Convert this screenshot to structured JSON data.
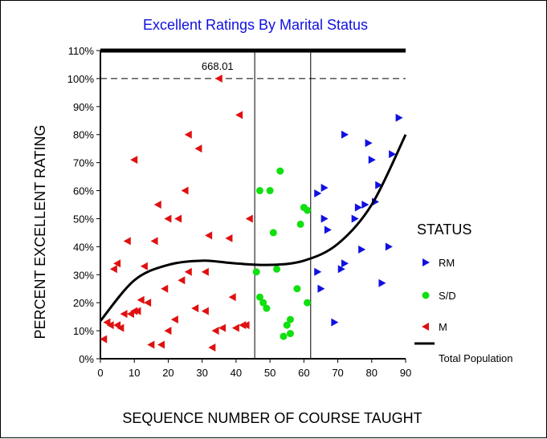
{
  "chart_data": {
    "type": "scatter",
    "title": "Excellent Ratings By Marital Status",
    "xlabel": "SEQUENCE NUMBER OF COURSE TAUGHT",
    "ylabel": "PERCENT EXCELLENT RATING",
    "xlim": [
      0,
      90
    ],
    "ylim": [
      0,
      110
    ],
    "x_ticks": [
      "0",
      "10",
      "20",
      "30",
      "40",
      "50",
      "60",
      "70",
      "80",
      "90"
    ],
    "y_ticks": [
      "0%",
      "10%",
      "20%",
      "30%",
      "40%",
      "50%",
      "60%",
      "70%",
      "80%",
      "90%",
      "100%",
      "110%"
    ],
    "reference_line_y": 100,
    "vertical_lines_x": [
      45.5,
      62
    ],
    "annotation": {
      "text": "668.01",
      "x": 35,
      "y": 100
    },
    "legend_title": "STATUS",
    "colors": {
      "RM": "#1010e0",
      "S/D": "#10e010",
      "M": "#e01010",
      "Total Population": "#000000"
    },
    "series": [
      {
        "name": "RM",
        "marker": "triangle-right",
        "points": [
          [
            88,
            86
          ],
          [
            72,
            80
          ],
          [
            79,
            77
          ],
          [
            80,
            71
          ],
          [
            86,
            73
          ],
          [
            78,
            55
          ],
          [
            82,
            62
          ],
          [
            81,
            56
          ],
          [
            76,
            54
          ],
          [
            75,
            50
          ],
          [
            64,
            59
          ],
          [
            66,
            61
          ],
          [
            66,
            50
          ],
          [
            67,
            46
          ],
          [
            85,
            40
          ],
          [
            77,
            39
          ],
          [
            72,
            34
          ],
          [
            71,
            32
          ],
          [
            64,
            31
          ],
          [
            65,
            25
          ],
          [
            83,
            27
          ],
          [
            69,
            13
          ]
        ]
      },
      {
        "name": "S/D",
        "marker": "circle",
        "points": [
          [
            53,
            67
          ],
          [
            47,
            60
          ],
          [
            50,
            60
          ],
          [
            60,
            54
          ],
          [
            61,
            53
          ],
          [
            59,
            48
          ],
          [
            51,
            45
          ],
          [
            46,
            31
          ],
          [
            52,
            32
          ],
          [
            58,
            25
          ],
          [
            47,
            22
          ],
          [
            48,
            20
          ],
          [
            49,
            18
          ],
          [
            61,
            20
          ],
          [
            56,
            14
          ],
          [
            55,
            12
          ],
          [
            56,
            9
          ],
          [
            54,
            8
          ]
        ]
      },
      {
        "name": "M",
        "marker": "triangle-left",
        "points": [
          [
            35,
            100
          ],
          [
            41,
            87
          ],
          [
            10,
            71
          ],
          [
            26,
            80
          ],
          [
            29,
            75
          ],
          [
            25,
            60
          ],
          [
            17,
            55
          ],
          [
            20,
            50
          ],
          [
            23,
            50
          ],
          [
            44,
            50
          ],
          [
            8,
            42
          ],
          [
            16,
            42
          ],
          [
            32,
            44
          ],
          [
            38,
            43
          ],
          [
            5,
            34
          ],
          [
            4,
            32
          ],
          [
            13,
            33
          ],
          [
            26,
            31
          ],
          [
            31,
            31
          ],
          [
            12,
            21
          ],
          [
            14,
            20
          ],
          [
            19,
            25
          ],
          [
            24,
            28
          ],
          [
            39,
            22
          ],
          [
            10,
            17
          ],
          [
            11,
            17
          ],
          [
            7,
            16
          ],
          [
            9,
            16
          ],
          [
            22,
            14
          ],
          [
            28,
            18
          ],
          [
            31,
            17
          ],
          [
            20,
            10
          ],
          [
            34,
            10
          ],
          [
            36,
            11
          ],
          [
            40,
            11
          ],
          [
            42,
            12
          ],
          [
            43,
            12
          ],
          [
            2,
            13
          ],
          [
            3,
            12
          ],
          [
            5,
            12
          ],
          [
            6,
            11
          ],
          [
            1,
            7
          ],
          [
            15,
            5
          ],
          [
            18,
            5
          ],
          [
            33,
            4
          ]
        ]
      },
      {
        "name": "Total Population",
        "type": "line",
        "points": [
          [
            0,
            13.5
          ],
          [
            10,
            28
          ],
          [
            20,
            33.5
          ],
          [
            30,
            35
          ],
          [
            40,
            34
          ],
          [
            50,
            33.5
          ],
          [
            60,
            35
          ],
          [
            70,
            41
          ],
          [
            80,
            55
          ],
          [
            90,
            80
          ]
        ]
      }
    ]
  }
}
